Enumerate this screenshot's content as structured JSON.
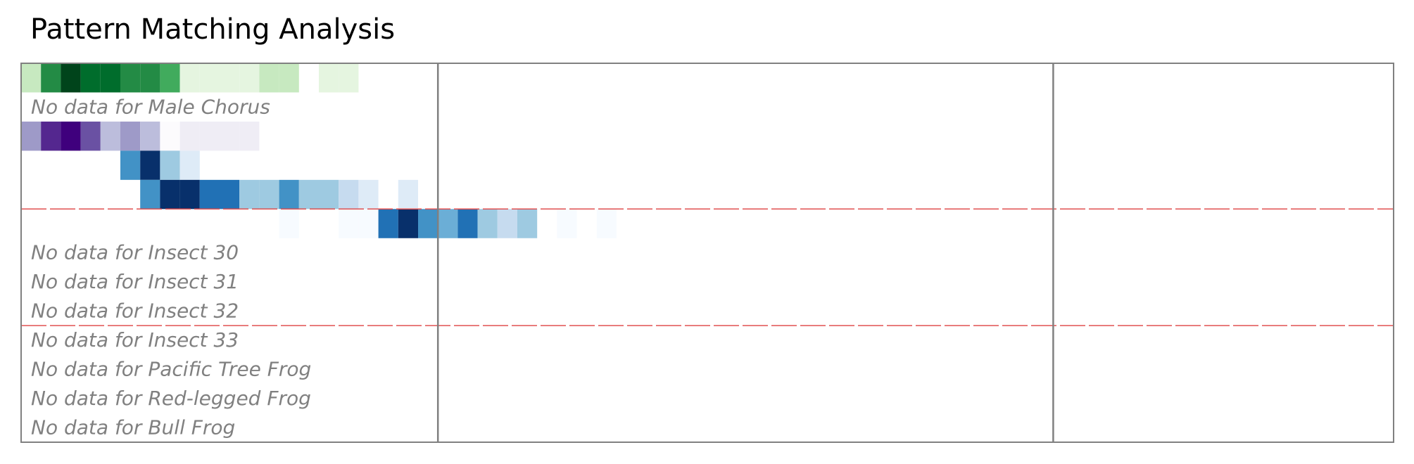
{
  "title": "Pattern Matching Analysis",
  "chart_data": {
    "type": "heatmap",
    "title": "Pattern Matching Analysis",
    "columns": 60,
    "column_boundaries": [
      21,
      52
    ],
    "group_boundaries_after_row": [
      5,
      9
    ],
    "palettes": {
      "Greens": [
        "#f7fcf5",
        "#e5f5e0",
        "#c7e9c0",
        "#a1d99b",
        "#74c476",
        "#41ab5d",
        "#238b45",
        "#006d2c",
        "#00441b"
      ],
      "Purples": [
        "#fcfbfd",
        "#efedf5",
        "#dadaeb",
        "#bcbddc",
        "#9e9ac8",
        "#807dba",
        "#6a51a3",
        "#54278f",
        "#3f007d"
      ],
      "Blues": [
        "#f7fbff",
        "#deebf7",
        "#c6dbef",
        "#9ecae1",
        "#6baed6",
        "#4292c6",
        "#2171b5",
        "#08519c",
        "#08306b"
      ]
    },
    "rows": [
      {
        "name": "",
        "palette": "Greens",
        "has_data": true,
        "values": [
          0.25,
          0.75,
          1.0,
          0.85,
          0.9,
          0.75,
          0.75,
          0.6,
          0.15,
          0.15,
          0.15,
          0.15,
          0.3,
          0.2,
          0.0,
          0.1,
          0.1
        ]
      },
      {
        "name": "Male Chorus",
        "palette": "Greens",
        "has_data": false,
        "values": []
      },
      {
        "name": "",
        "palette": "Purples",
        "has_data": true,
        "values": [
          0.45,
          0.9,
          1.0,
          0.8,
          0.4,
          0.55,
          0.35,
          0.05,
          0.15,
          0.1,
          0.08,
          0.1
        ]
      },
      {
        "name": "",
        "palette": "Blues",
        "has_data": true,
        "values": [
          0.0,
          0.0,
          0.0,
          0.0,
          0.0,
          0.6,
          1.0,
          0.4,
          0.15
        ]
      },
      {
        "name": "",
        "palette": "Blues",
        "has_data": true,
        "values": [
          0.0,
          0.0,
          0.0,
          0.0,
          0.0,
          0.0,
          0.6,
          0.95,
          1.0,
          0.8,
          0.75,
          0.4,
          0.35,
          0.6,
          0.4,
          0.4,
          0.3,
          0.15,
          0.0,
          0.15
        ]
      },
      {
        "name": "",
        "palette": "Blues",
        "has_data": true,
        "values": [
          0.0,
          0.0,
          0.0,
          0.0,
          0.0,
          0.0,
          0.0,
          0.0,
          0.0,
          0.0,
          0.0,
          0.0,
          0.0,
          0.05,
          0.0,
          0.0,
          0.05,
          0.05,
          0.7,
          1.0,
          0.65,
          0.55,
          0.7,
          0.4,
          0.2,
          0.35,
          0.0,
          0.05,
          0.0,
          0.05
        ]
      },
      {
        "name": "Insect 30",
        "palette": "Blues",
        "has_data": false,
        "values": []
      },
      {
        "name": "Insect 31",
        "palette": "Blues",
        "has_data": false,
        "values": []
      },
      {
        "name": "Insect 32",
        "palette": "Blues",
        "has_data": false,
        "values": []
      },
      {
        "name": "Insect 33",
        "palette": "Blues",
        "has_data": false,
        "values": []
      },
      {
        "name": "Pacific Tree Frog",
        "palette": "Blues",
        "has_data": false,
        "values": []
      },
      {
        "name": "Red-legged Frog",
        "palette": "Blues",
        "has_data": false,
        "values": []
      },
      {
        "name": "Bull Frog",
        "palette": "Blues",
        "has_data": false,
        "values": []
      }
    ],
    "no_data_template": "No data for {name}",
    "colors": {
      "frame": "#808080",
      "separator": "#e05050",
      "no_data_text": "#808080"
    }
  }
}
